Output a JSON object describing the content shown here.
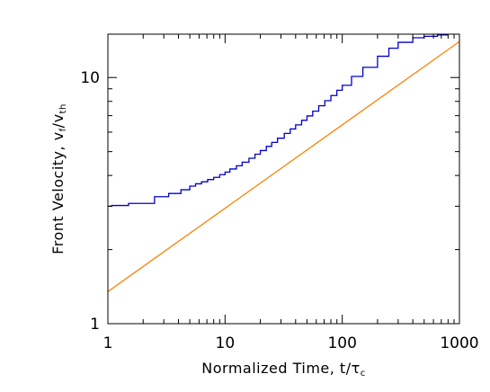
{
  "chart_data": {
    "type": "line",
    "xlabel": "Normalized Time, t/τ",
    "xlabel_subscript": "c",
    "ylabel": "Front Velocity, v",
    "ylabel_subscript_1": "f",
    "ylabel_mid": "/v",
    "ylabel_subscript_2": "th",
    "x_scale": "log",
    "y_scale": "log",
    "xlim": [
      1,
      1000
    ],
    "ylim": [
      1,
      15
    ],
    "x_ticks": [
      {
        "value": 1,
        "label": "1"
      },
      {
        "value": 10,
        "label": "10"
      },
      {
        "value": 100,
        "label": "100"
      },
      {
        "value": 1000,
        "label": "1000"
      }
    ],
    "y_ticks": [
      {
        "value": 1,
        "label": "1"
      },
      {
        "value": 10,
        "label": "10"
      }
    ],
    "grid": false,
    "series": [
      {
        "color": "#0000cc",
        "style": "step",
        "x": [
          1,
          1.08,
          1.5,
          2.5,
          3.3,
          4.2,
          5.0,
          5.6,
          6.3,
          7.1,
          8.0,
          9.0,
          10,
          11,
          12.5,
          14,
          16,
          18,
          20,
          22.5,
          25,
          28,
          32,
          36,
          40,
          45,
          50,
          56,
          63,
          71,
          80,
          90,
          100,
          120,
          150,
          200,
          250,
          300,
          400,
          500,
          650,
          800,
          1000
        ],
        "y": [
          3.0,
          3.02,
          3.08,
          3.28,
          3.38,
          3.5,
          3.62,
          3.7,
          3.77,
          3.85,
          3.93,
          4.03,
          4.13,
          4.25,
          4.38,
          4.53,
          4.7,
          4.88,
          5.05,
          5.25,
          5.45,
          5.67,
          5.93,
          6.18,
          6.42,
          6.7,
          6.98,
          7.3,
          7.68,
          8.05,
          8.45,
          8.88,
          9.3,
          10.1,
          11.0,
          12.2,
          13.15,
          13.9,
          14.5,
          14.7,
          14.9,
          15.3,
          15.5
        ]
      },
      {
        "color": "#ff8000",
        "style": "line",
        "x": [
          1,
          1000
        ],
        "y": [
          1.35,
          14.0
        ]
      }
    ]
  }
}
